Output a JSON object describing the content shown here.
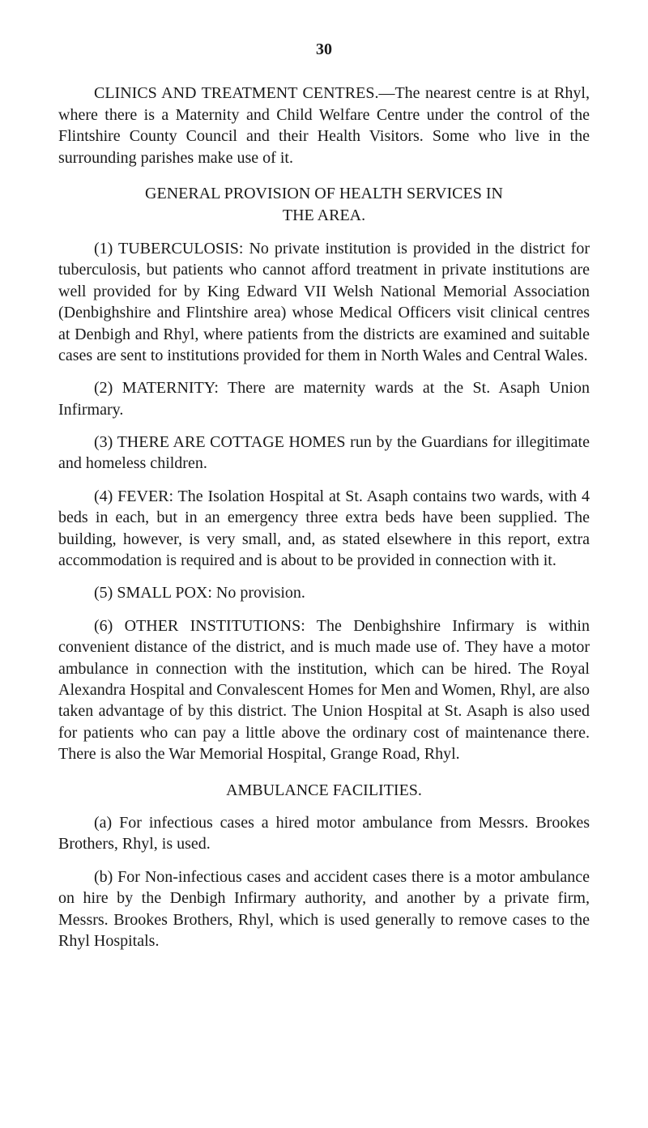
{
  "page_number": "30",
  "p1": "CLINICS AND TREATMENT CENTRES.—The nearest centre is at Rhyl, where there is a Maternity and Child Welfare Centre under the control of the Flintshire County Council and their Health Visitors. Some who live in the surrounding parishes make use of it.",
  "heading1_line1": "GENERAL PROVISION OF HEALTH SERVICES IN",
  "heading1_line2": "THE AREA.",
  "p2": "(1) TUBERCULOSIS: No private institution is provided in the district for tuberculosis, but patients who cannot afford treatment in private institutions are well provided for by King Edward VII Welsh National Memorial Association (Denbighshire and Flintshire area) whose Medical Officers visit clinical centres at Denbigh and Rhyl, where patients from the districts are examined and suitable cases are sent to institutions provided for them in North Wales and Central Wales.",
  "p3": "(2) MATERNITY: There are maternity wards at the St. Asaph Union Infirmary.",
  "p4": "(3) THERE ARE COTTAGE HOMES run by the Guardians for illegitimate and homeless children.",
  "p5": "(4) FEVER: The Isolation Hospital at St. Asaph contains two wards, with 4 beds in each, but in an emergency three extra beds have been supplied. The building, however, is very small, and, as stated elsewhere in this report, extra accommodation is required and is about to be provided in connection with it.",
  "p6": "(5) SMALL POX: No provision.",
  "p7": "(6) OTHER INSTITUTIONS: The Denbighshire Infirmary is within convenient distance of the district, and is much made use of. They have a motor ambulance in connection with the institution, which can be hired. The Royal Alexandra Hospital and Convalescent Homes for Men and Women, Rhyl, are also taken advantage of by this district. The Union Hospital at St. Asaph is also used for patients who can pay a little above the ordinary cost of maintenance there. There is also the War Memorial Hospital, Grange Road, Rhyl.",
  "heading2": "AMBULANCE FACILITIES.",
  "p8": "(a) For infectious cases a hired motor ambulance from Messrs. Brookes Brothers, Rhyl, is used.",
  "p9": "(b) For Non-infectious cases and accident cases there is a motor ambulance on hire by the Denbigh Infirmary authority, and another by a private firm, Messrs. Brookes Brothers, Rhyl, which is used generally to remove cases to the Rhyl Hospitals."
}
